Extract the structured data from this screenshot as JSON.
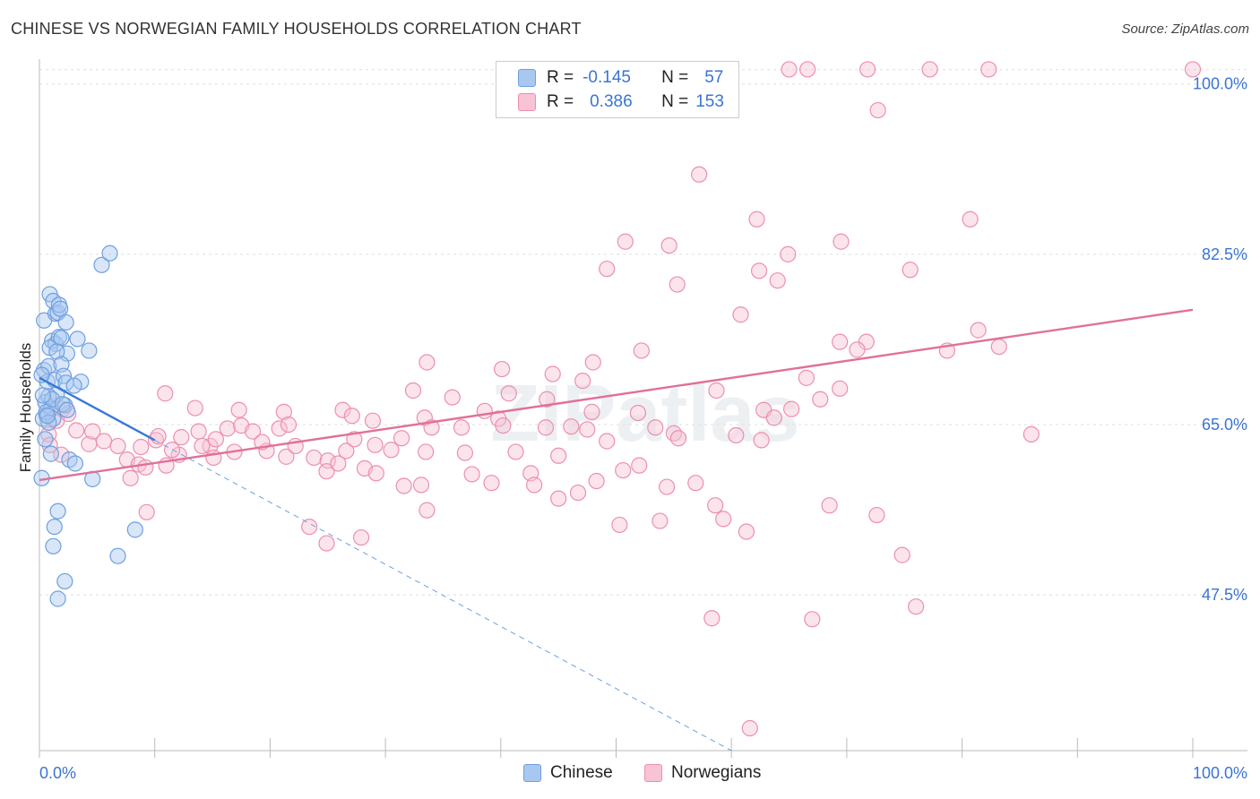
{
  "header": {
    "title": "CHINESE VS NORWEGIAN FAMILY HOUSEHOLDS CORRELATION CHART",
    "source": "Source: ZipAtlas.com"
  },
  "legend": {
    "rows": [
      {
        "r_label": "R =",
        "r_value": "-0.145",
        "n_label": "N =",
        "n_value": "57",
        "color": "#a9c8f0",
        "border": "#6f9fe0"
      },
      {
        "r_label": "R =",
        "r_value": "0.386",
        "n_label": "N =",
        "n_value": "153",
        "color": "#f8c3d4",
        "border": "#ec8fae"
      }
    ]
  },
  "watermark": "ZIPatlas",
  "chart_data": {
    "type": "scatter",
    "title": "CHINESE VS NORWEGIAN FAMILY HOUSEHOLDS CORRELATION CHART",
    "xlabel": "",
    "ylabel": "Family Households",
    "xlim": [
      0,
      100
    ],
    "ylim": [
      31.5,
      102
    ],
    "x_tick_labels": [
      "0.0%",
      "100.0%"
    ],
    "y_ticks": [
      47.5,
      65.0,
      82.5,
      100.0
    ],
    "y_tick_labels": [
      "47.5%",
      "65.0%",
      "82.5%",
      "100.0%"
    ],
    "grid": true,
    "legend_position": "top-center",
    "series": [
      {
        "name": "Chinese",
        "color": "#6f9fe0",
        "fill": "#a9c8f0",
        "trend": {
          "x": [
            0,
            10
          ],
          "y": [
            69.8,
            63.4
          ],
          "dashed_extension_to": [
            60,
            31.5
          ]
        },
        "points": [
          [
            0.4,
            70.6
          ],
          [
            0.5,
            67.3
          ],
          [
            0.6,
            66.0
          ],
          [
            0.3,
            65.6
          ],
          [
            0.7,
            69.4
          ],
          [
            0.8,
            71.0
          ],
          [
            0.4,
            75.7
          ],
          [
            0.9,
            78.4
          ],
          [
            1.2,
            77.7
          ],
          [
            1.4,
            76.4
          ],
          [
            1.6,
            76.5
          ],
          [
            1.7,
            77.3
          ],
          [
            1.8,
            76.9
          ],
          [
            2.3,
            75.5
          ],
          [
            1.1,
            73.6
          ],
          [
            1.4,
            73.3
          ],
          [
            1.7,
            74.0
          ],
          [
            1.9,
            73.9
          ],
          [
            2.4,
            72.3
          ],
          [
            3.3,
            73.8
          ],
          [
            4.3,
            72.6
          ],
          [
            0.9,
            72.9
          ],
          [
            1.5,
            72.5
          ],
          [
            1.9,
            71.2
          ],
          [
            1.3,
            69.6
          ],
          [
            2.1,
            70.0
          ],
          [
            2.3,
            69.3
          ],
          [
            3.6,
            69.4
          ],
          [
            1.5,
            68.1
          ],
          [
            2.2,
            67.0
          ],
          [
            1.0,
            66.6
          ],
          [
            1.2,
            65.6
          ],
          [
            0.6,
            66.3
          ],
          [
            0.8,
            65.2
          ],
          [
            0.7,
            65.9
          ],
          [
            0.5,
            63.5
          ],
          [
            1.0,
            62.0
          ],
          [
            0.2,
            59.5
          ],
          [
            2.6,
            61.4
          ],
          [
            3.1,
            61.0
          ],
          [
            4.6,
            59.4
          ],
          [
            5.4,
            81.4
          ],
          [
            6.1,
            82.6
          ],
          [
            0.2,
            70.1
          ],
          [
            0.8,
            67.9
          ],
          [
            1.1,
            67.6
          ],
          [
            2.0,
            67.1
          ],
          [
            1.6,
            56.1
          ],
          [
            1.3,
            54.5
          ],
          [
            2.2,
            48.9
          ],
          [
            1.6,
            47.1
          ],
          [
            8.3,
            54.2
          ],
          [
            6.8,
            51.5
          ],
          [
            1.2,
            52.5
          ],
          [
            3.0,
            69.0
          ],
          [
            2.4,
            66.5
          ],
          [
            0.3,
            68.0
          ]
        ]
      },
      {
        "name": "Norwegians",
        "color": "#ec8fae",
        "fill": "#f8c3d4",
        "trend": {
          "x": [
            0,
            100
          ],
          "y": [
            59.3,
            76.8
          ]
        },
        "points": [
          [
            65.0,
            101.5
          ],
          [
            66.6,
            101.5
          ],
          [
            71.8,
            101.5
          ],
          [
            77.2,
            101.5
          ],
          [
            82.3,
            101.5
          ],
          [
            100.0,
            101.5
          ],
          [
            72.7,
            97.3
          ],
          [
            57.2,
            90.7
          ],
          [
            62.2,
            86.1
          ],
          [
            80.7,
            86.1
          ],
          [
            50.8,
            83.8
          ],
          [
            54.6,
            83.4
          ],
          [
            69.5,
            83.8
          ],
          [
            64.9,
            82.5
          ],
          [
            75.5,
            80.9
          ],
          [
            49.2,
            81.0
          ],
          [
            62.4,
            80.8
          ],
          [
            64.0,
            79.8
          ],
          [
            55.3,
            79.4
          ],
          [
            81.4,
            74.7
          ],
          [
            83.2,
            73.0
          ],
          [
            60.8,
            76.3
          ],
          [
            69.4,
            73.5
          ],
          [
            71.7,
            73.5
          ],
          [
            70.9,
            72.7
          ],
          [
            52.2,
            72.6
          ],
          [
            78.7,
            72.6
          ],
          [
            48.0,
            71.4
          ],
          [
            47.1,
            69.5
          ],
          [
            33.6,
            71.4
          ],
          [
            40.1,
            70.7
          ],
          [
            44.5,
            70.2
          ],
          [
            66.5,
            69.8
          ],
          [
            58.7,
            68.5
          ],
          [
            69.4,
            68.7
          ],
          [
            62.8,
            66.5
          ],
          [
            32.4,
            68.5
          ],
          [
            40.7,
            68.2
          ],
          [
            44.0,
            67.6
          ],
          [
            35.8,
            67.8
          ],
          [
            47.9,
            66.3
          ],
          [
            39.8,
            65.6
          ],
          [
            43.9,
            64.7
          ],
          [
            63.7,
            65.7
          ],
          [
            67.7,
            67.6
          ],
          [
            65.2,
            66.6
          ],
          [
            17.3,
            66.5
          ],
          [
            21.2,
            66.3
          ],
          [
            26.3,
            66.5
          ],
          [
            27.1,
            65.9
          ],
          [
            28.9,
            65.4
          ],
          [
            33.4,
            65.7
          ],
          [
            38.6,
            66.4
          ],
          [
            51.9,
            66.2
          ],
          [
            53.4,
            64.7
          ],
          [
            55.0,
            64.1
          ],
          [
            60.4,
            63.9
          ],
          [
            62.6,
            63.4
          ],
          [
            34.0,
            64.7
          ],
          [
            36.6,
            64.7
          ],
          [
            40.2,
            64.9
          ],
          [
            46.1,
            64.8
          ],
          [
            47.5,
            64.5
          ],
          [
            49.2,
            63.3
          ],
          [
            55.4,
            63.6
          ],
          [
            26.6,
            62.3
          ],
          [
            27.3,
            63.5
          ],
          [
            29.1,
            62.9
          ],
          [
            30.5,
            62.4
          ],
          [
            31.4,
            63.6
          ],
          [
            33.5,
            62.2
          ],
          [
            36.9,
            62.1
          ],
          [
            41.3,
            62.2
          ],
          [
            45.0,
            61.8
          ],
          [
            14.8,
            62.8
          ],
          [
            16.9,
            62.2
          ],
          [
            19.7,
            62.3
          ],
          [
            21.4,
            61.7
          ],
          [
            23.8,
            61.6
          ],
          [
            25.0,
            61.3
          ],
          [
            12.1,
            61.9
          ],
          [
            12.3,
            63.7
          ],
          [
            13.8,
            64.3
          ],
          [
            15.3,
            63.5
          ],
          [
            16.3,
            64.6
          ],
          [
            17.5,
            64.9
          ],
          [
            18.5,
            64.3
          ],
          [
            19.3,
            63.2
          ],
          [
            20.8,
            64.6
          ],
          [
            21.6,
            65.0
          ],
          [
            22.2,
            62.8
          ],
          [
            24.9,
            60.2
          ],
          [
            25.9,
            61.0
          ],
          [
            28.2,
            60.5
          ],
          [
            29.2,
            60.0
          ],
          [
            31.6,
            58.7
          ],
          [
            33.1,
            58.8
          ],
          [
            33.6,
            56.2
          ],
          [
            37.5,
            59.9
          ],
          [
            39.2,
            59.0
          ],
          [
            42.6,
            60.0
          ],
          [
            42.9,
            58.8
          ],
          [
            46.7,
            58.0
          ],
          [
            48.3,
            59.2
          ],
          [
            50.6,
            60.3
          ],
          [
            52.0,
            60.8
          ],
          [
            54.4,
            58.6
          ],
          [
            56.9,
            59.0
          ],
          [
            58.6,
            56.7
          ],
          [
            4.3,
            63.0
          ],
          [
            5.6,
            63.3
          ],
          [
            6.8,
            62.8
          ],
          [
            7.6,
            61.4
          ],
          [
            8.6,
            60.9
          ],
          [
            9.2,
            60.6
          ],
          [
            10.1,
            63.4
          ],
          [
            11.0,
            60.8
          ],
          [
            3.2,
            64.4
          ],
          [
            4.6,
            64.3
          ],
          [
            1.5,
            65.4
          ],
          [
            0.8,
            64.0
          ],
          [
            0.9,
            62.9
          ],
          [
            1.9,
            61.9
          ],
          [
            2.0,
            66.6
          ],
          [
            2.5,
            66.1
          ],
          [
            8.8,
            62.7
          ],
          [
            7.9,
            59.5
          ],
          [
            9.3,
            56.0
          ],
          [
            10.3,
            63.8
          ],
          [
            10.9,
            68.2
          ],
          [
            11.5,
            62.4
          ],
          [
            13.5,
            66.7
          ],
          [
            14.1,
            62.8
          ],
          [
            15.1,
            61.6
          ],
          [
            23.4,
            54.5
          ],
          [
            24.9,
            52.8
          ],
          [
            27.9,
            53.4
          ],
          [
            45.0,
            57.4
          ],
          [
            50.3,
            54.7
          ],
          [
            53.8,
            55.1
          ],
          [
            59.3,
            55.3
          ],
          [
            61.3,
            54.0
          ],
          [
            68.5,
            56.7
          ],
          [
            72.6,
            55.7
          ],
          [
            58.3,
            45.1
          ],
          [
            61.6,
            33.8
          ],
          [
            74.8,
            51.6
          ],
          [
            76.0,
            46.3
          ],
          [
            67.0,
            45.0
          ],
          [
            86.0,
            64.0
          ]
        ]
      }
    ]
  }
}
